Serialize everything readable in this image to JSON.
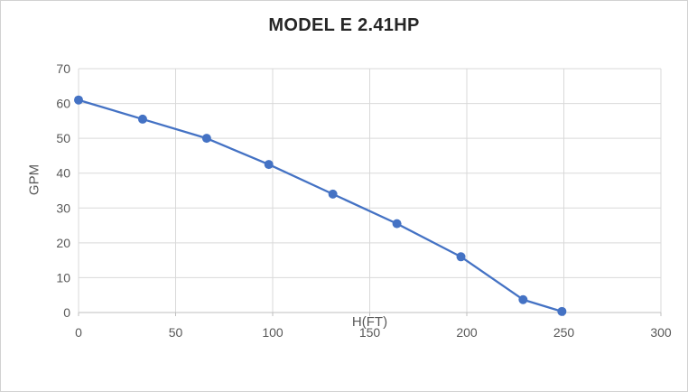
{
  "chart_data": {
    "type": "scatter",
    "title": "MODEL E 2.41HP",
    "xlabel": "H(FT)",
    "ylabel": "GPM",
    "x": [
      0,
      33,
      66,
      98,
      131,
      164,
      197,
      229,
      249
    ],
    "y": [
      61,
      55.5,
      50,
      42.5,
      34,
      25.5,
      16,
      3.7,
      0.3
    ],
    "xlim": [
      0,
      300
    ],
    "ylim": [
      0,
      70
    ],
    "x_ticks": [
      "0",
      "50",
      "100",
      "150",
      "200",
      "250",
      "300"
    ],
    "y_ticks": [
      "0",
      "10",
      "20",
      "30",
      "40",
      "50",
      "60",
      "70"
    ],
    "grid": true,
    "legend_position": "none",
    "line_color": "#4472C4",
    "marker_color": "#4472C4",
    "grid_color": "#D9D9D9",
    "axis_line_color": "#BFBFBF",
    "axis_text_color": "#595959",
    "title_color": "#262626"
  }
}
